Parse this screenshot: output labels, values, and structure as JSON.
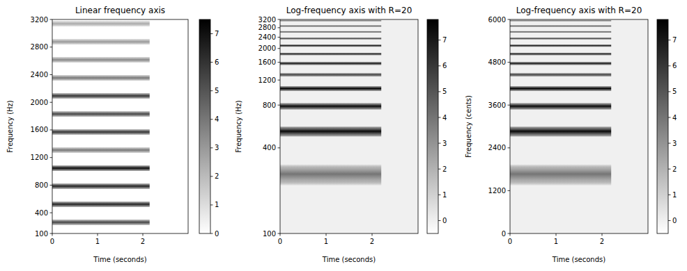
{
  "chart_data": [
    {
      "type": "heatmap",
      "title": "Linear frequency axis",
      "x_label": "Time (seconds)",
      "y_label": "Frequency (Hz)",
      "xlim": [
        0,
        3
      ],
      "xticks": [
        0,
        1,
        2
      ],
      "ylim": [
        100,
        3200
      ],
      "yticks": [
        100,
        400,
        800,
        1200,
        1600,
        2000,
        2400,
        2800,
        3200
      ],
      "background": 0,
      "bands": {
        "start": 0,
        "end": 2.15,
        "frequencies": [
          262,
          523,
          785,
          1046,
          1308,
          1570,
          1831,
          2093,
          2354,
          2616,
          2877,
          3139
        ],
        "low": [
          217,
          478,
          740,
          1001,
          1263,
          1525,
          1786,
          2048,
          2309,
          2571,
          2832,
          3094
        ],
        "high": [
          307,
          568,
          830,
          1091,
          1353,
          1615,
          1876,
          2138,
          2399,
          2661,
          2922,
          3184
        ],
        "values": [
          5.5,
          6.5,
          6.5,
          7.2,
          4,
          6,
          5.5,
          6,
          4,
          3.5,
          3,
          2.5
        ]
      },
      "colorbar": {
        "range": [
          0,
          7.5
        ],
        "ticks": [
          0,
          1,
          2,
          3,
          4,
          5,
          6,
          7
        ]
      }
    },
    {
      "type": "heatmap",
      "title": "Log-frequency axis with R=20",
      "x_label": "Time (seconds)",
      "y_label": "Frequency (Hz)",
      "xlim": [
        0,
        3
      ],
      "xticks": [
        0,
        1,
        2
      ],
      "ylim": [
        100,
        3200
      ],
      "yticks": [
        100,
        400,
        800,
        1200,
        1600,
        2000,
        2400,
        2800,
        3200
      ],
      "log": "y",
      "background": 0,
      "bands": {
        "start": 0,
        "end": 2.2,
        "frequencies": [
          262,
          523,
          785,
          1046,
          1308,
          1570,
          1831,
          2093,
          2354,
          2616,
          2877,
          3139
        ],
        "low": [
          217,
          478,
          740,
          1001,
          1263,
          1525,
          1786,
          2048,
          2309,
          2571,
          2832,
          3094
        ],
        "high": [
          307,
          568,
          830,
          1091,
          1353,
          1615,
          1876,
          2138,
          2399,
          2661,
          2922,
          3184
        ],
        "values": [
          4,
          7.5,
          7.5,
          7.8,
          5.5,
          7,
          6.5,
          7,
          5.5,
          5,
          4.5,
          4
        ]
      },
      "colorbar": {
        "range": [
          -0.5,
          7.8
        ],
        "ticks": [
          0,
          1,
          2,
          3,
          4,
          5,
          6,
          7
        ]
      }
    },
    {
      "type": "heatmap",
      "title": "Log-frequency axis with R=20",
      "x_label": "Time (seconds)",
      "y_label": "Frequency (cents)",
      "xlim": [
        0,
        3
      ],
      "xticks": [
        0,
        1,
        2
      ],
      "ylim": [
        0,
        6000
      ],
      "yticks": [
        0,
        1200,
        2400,
        3600,
        4800,
        6000
      ],
      "background": 0,
      "bands": {
        "start": 0,
        "end": 2.2,
        "frequencies": [
          1668,
          2864,
          3567,
          4064,
          4451,
          4767,
          5034,
          5265,
          5468,
          5651,
          5816,
          5967
        ],
        "low": [
          1341,
          2708,
          3465,
          3988,
          4391,
          4717,
          4990,
          5227,
          5435,
          5621,
          5788,
          5942
        ],
        "high": [
          1942,
          3007,
          3664,
          4137,
          4510,
          4816,
          5076,
          5302,
          5501,
          5681,
          5843,
          5991
        ],
        "values": [
          4,
          7.5,
          7.5,
          7.8,
          5.5,
          7,
          6.5,
          7,
          5.5,
          5,
          4.5,
          4
        ]
      },
      "colorbar": {
        "range": [
          -0.5,
          7.8
        ],
        "ticks": [
          0,
          1,
          2,
          3,
          4,
          5,
          6,
          7
        ]
      }
    }
  ]
}
